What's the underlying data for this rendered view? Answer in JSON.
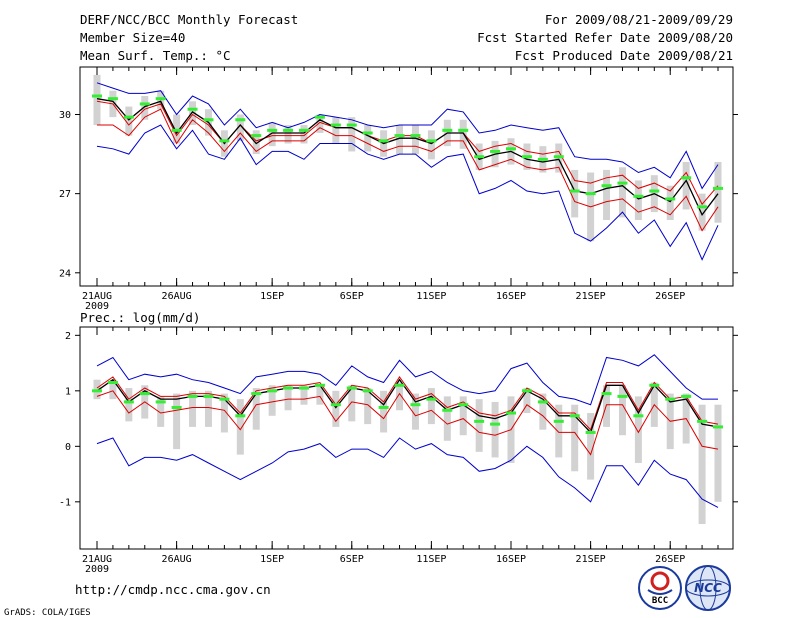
{
  "header": {
    "title": "DERF/NCC/BCC Monthly Forecast",
    "member_size": "Member Size=40",
    "variable": "Mean Surf. Temp.: °C",
    "period": "For 2009/08/21-2009/09/29",
    "start_date": "Fcst Started Refer Date 2009/08/20",
    "produced_date": "Fcst Produced Date 2009/08/21"
  },
  "footer": {
    "url": "http://cmdp.ncc.cma.gov.cn",
    "credit": "GrADS: COLA/IGES",
    "logo_left": "BCC",
    "logo_right": "NCC"
  },
  "colors": {
    "box": "#d2d2d2",
    "member": "#33ee33",
    "mean": "#000000",
    "inner": "#dd0000",
    "outer": "#0000cc"
  },
  "chart_data": [
    {
      "type": "line",
      "title": "Mean Surf. Temp.: °C",
      "x_tick_labels": [
        "21AUG",
        "26AUG",
        "1SEP",
        "6SEP",
        "11SEP",
        "16SEP",
        "21SEP",
        "26SEP"
      ],
      "x_tick_days": [
        1,
        6,
        12,
        17,
        22,
        27,
        32,
        37
      ],
      "year_label": "2009",
      "days": 40,
      "y_ticks": [
        24,
        27,
        30
      ],
      "ylim": [
        23.5,
        31.8
      ],
      "series": [
        {
          "name": "mean",
          "values": [
            30.6,
            30.5,
            29.8,
            30.3,
            30.5,
            29.3,
            30.1,
            29.7,
            28.9,
            29.6,
            28.9,
            29.3,
            29.3,
            29.3,
            29.8,
            29.5,
            29.5,
            29.2,
            28.9,
            29.1,
            29.1,
            28.9,
            29.3,
            29.3,
            28.3,
            28.5,
            28.6,
            28.3,
            28.2,
            28.3,
            27.1,
            27.0,
            27.2,
            27.3,
            26.8,
            27.0,
            26.7,
            27.5,
            26.2,
            27.0
          ]
        },
        {
          "name": "member",
          "values": [
            30.7,
            30.6,
            29.9,
            30.4,
            30.6,
            29.4,
            30.2,
            29.8,
            29.0,
            29.8,
            29.2,
            29.4,
            29.4,
            29.4,
            29.9,
            29.6,
            29.6,
            29.3,
            29.0,
            29.2,
            29.2,
            29.0,
            29.4,
            29.4,
            28.4,
            28.6,
            28.7,
            28.4,
            28.3,
            28.4,
            27.1,
            27.0,
            27.3,
            27.4,
            26.9,
            27.1,
            26.8,
            27.6,
            26.5,
            27.2
          ]
        },
        {
          "name": "upper_inner",
          "values": [
            30.5,
            30.4,
            29.6,
            30.2,
            30.4,
            29.2,
            30.0,
            29.6,
            28.9,
            29.6,
            29.0,
            29.2,
            29.2,
            29.2,
            29.7,
            29.5,
            29.5,
            29.2,
            29.0,
            29.2,
            29.2,
            28.9,
            29.3,
            29.3,
            28.6,
            28.8,
            28.9,
            28.6,
            28.5,
            28.6,
            27.5,
            27.4,
            27.6,
            27.7,
            27.2,
            27.4,
            27.1,
            27.8,
            26.6,
            27.3
          ]
        },
        {
          "name": "lower_inner",
          "values": [
            29.6,
            29.6,
            29.2,
            29.9,
            30.2,
            28.9,
            29.8,
            29.3,
            28.6,
            29.3,
            28.6,
            29.0,
            29.0,
            29.0,
            29.5,
            29.2,
            29.2,
            28.9,
            28.6,
            28.8,
            28.8,
            28.6,
            29.0,
            29.0,
            27.9,
            28.1,
            28.3,
            28.0,
            27.9,
            28.0,
            26.7,
            26.5,
            26.7,
            26.8,
            26.3,
            26.5,
            26.2,
            26.9,
            25.6,
            26.5
          ]
        },
        {
          "name": "upper_outer",
          "values": [
            31.2,
            31.0,
            30.8,
            30.8,
            30.9,
            30.0,
            30.7,
            30.4,
            29.6,
            30.2,
            29.5,
            29.7,
            29.5,
            29.7,
            30.0,
            29.9,
            29.8,
            29.6,
            29.5,
            29.6,
            29.6,
            29.6,
            30.2,
            30.1,
            29.3,
            29.4,
            29.6,
            29.5,
            29.4,
            29.5,
            28.4,
            28.3,
            28.3,
            28.2,
            27.8,
            28.0,
            27.6,
            28.6,
            27.2,
            28.1
          ]
        },
        {
          "name": "lower_outer",
          "values": [
            28.8,
            28.7,
            28.5,
            29.3,
            29.6,
            28.7,
            29.4,
            28.5,
            28.3,
            29.1,
            28.1,
            28.6,
            28.6,
            28.3,
            28.9,
            28.9,
            28.9,
            28.5,
            28.3,
            28.5,
            28.5,
            28.0,
            28.4,
            28.5,
            27.0,
            27.2,
            27.5,
            27.1,
            27.0,
            27.1,
            25.5,
            25.2,
            25.7,
            26.3,
            25.5,
            26.0,
            25.0,
            25.9,
            24.5,
            25.8
          ]
        },
        {
          "name": "box_high",
          "values": [
            31.5,
            30.9,
            30.3,
            30.7,
            30.9,
            30.0,
            30.5,
            30.2,
            29.4,
            30.0,
            29.4,
            29.7,
            29.6,
            29.6,
            30.0,
            29.9,
            29.9,
            29.6,
            29.4,
            29.6,
            29.6,
            29.4,
            29.8,
            29.8,
            28.9,
            29.0,
            29.1,
            28.9,
            28.8,
            28.9,
            27.9,
            27.8,
            27.9,
            28.0,
            27.5,
            27.7,
            27.3,
            28.2,
            27.0,
            28.2
          ]
        },
        {
          "name": "box_low",
          "values": [
            29.6,
            29.9,
            29.2,
            29.8,
            30.2,
            28.9,
            29.6,
            29.2,
            28.4,
            29.0,
            28.5,
            28.8,
            28.9,
            28.9,
            29.3,
            28.9,
            28.6,
            28.6,
            28.4,
            28.5,
            28.5,
            28.3,
            28.8,
            28.7,
            27.9,
            28.0,
            28.1,
            27.9,
            27.8,
            27.8,
            26.1,
            25.2,
            26.0,
            26.1,
            26.0,
            26.3,
            26.0,
            26.4,
            25.6,
            25.9
          ]
        }
      ]
    },
    {
      "type": "line",
      "title": "Prec.: log(mm/d)",
      "x_tick_labels": [
        "21AUG",
        "26AUG",
        "1SEP",
        "6SEP",
        "11SEP",
        "16SEP",
        "21SEP",
        "26SEP"
      ],
      "x_tick_days": [
        1,
        6,
        12,
        17,
        22,
        27,
        32,
        37
      ],
      "year_label": "2009",
      "days": 40,
      "y_ticks": [
        -1,
        0,
        1,
        2
      ],
      "ylim": [
        -1.85,
        2.15
      ],
      "series": [
        {
          "name": "mean",
          "values": [
            1.0,
            1.2,
            0.8,
            1.0,
            0.85,
            0.85,
            0.9,
            0.9,
            0.85,
            0.55,
            0.95,
            1.0,
            1.05,
            1.05,
            1.1,
            0.7,
            1.05,
            1.0,
            0.75,
            1.2,
            0.8,
            0.9,
            0.65,
            0.75,
            0.55,
            0.5,
            0.6,
            1.0,
            0.85,
            0.55,
            0.55,
            0.25,
            1.1,
            1.1,
            0.6,
            1.1,
            0.8,
            0.85,
            0.4,
            0.35
          ]
        },
        {
          "name": "member",
          "values": [
            1.0,
            1.15,
            0.8,
            0.95,
            0.8,
            0.7,
            0.9,
            0.9,
            0.85,
            0.55,
            0.95,
            1.0,
            1.05,
            1.05,
            1.1,
            0.75,
            1.05,
            1.0,
            0.7,
            1.1,
            0.75,
            0.85,
            0.65,
            0.75,
            0.45,
            0.4,
            0.6,
            1.0,
            0.8,
            0.45,
            0.55,
            0.25,
            0.95,
            0.9,
            0.55,
            1.1,
            0.85,
            0.9,
            0.45,
            0.35
          ]
        },
        {
          "name": "upper_inner",
          "values": [
            1.05,
            1.25,
            0.85,
            1.05,
            0.9,
            0.9,
            0.95,
            0.95,
            0.9,
            0.6,
            1.0,
            1.05,
            1.1,
            1.1,
            1.15,
            0.75,
            1.1,
            1.05,
            0.8,
            1.25,
            0.85,
            0.95,
            0.7,
            0.8,
            0.6,
            0.55,
            0.65,
            1.05,
            0.9,
            0.6,
            0.6,
            0.3,
            1.15,
            1.15,
            0.65,
            1.15,
            0.85,
            0.9,
            0.45,
            0.4
          ]
        },
        {
          "name": "lower_inner",
          "values": [
            0.9,
            1.0,
            0.6,
            0.8,
            0.6,
            0.65,
            0.7,
            0.7,
            0.65,
            0.3,
            0.75,
            0.8,
            0.85,
            0.85,
            0.9,
            0.45,
            0.8,
            0.75,
            0.5,
            0.95,
            0.55,
            0.65,
            0.4,
            0.5,
            0.25,
            0.2,
            0.3,
            0.75,
            0.55,
            0.25,
            0.25,
            -0.15,
            0.75,
            0.75,
            0.25,
            0.75,
            0.45,
            0.5,
            0.0,
            -0.05
          ]
        },
        {
          "name": "upper_outer",
          "values": [
            1.45,
            1.6,
            1.2,
            1.3,
            1.25,
            1.3,
            1.2,
            1.15,
            1.05,
            0.95,
            1.25,
            1.3,
            1.35,
            1.35,
            1.3,
            1.1,
            1.45,
            1.25,
            1.15,
            1.55,
            1.25,
            1.35,
            1.15,
            1.0,
            0.95,
            1.0,
            1.4,
            1.5,
            1.15,
            0.9,
            0.85,
            0.75,
            1.6,
            1.55,
            1.45,
            1.65,
            1.35,
            1.05,
            0.85,
            0.85
          ]
        },
        {
          "name": "lower_outer",
          "values": [
            0.05,
            0.15,
            -0.35,
            -0.2,
            -0.2,
            -0.25,
            -0.15,
            -0.3,
            -0.45,
            -0.6,
            -0.45,
            -0.3,
            -0.1,
            -0.05,
            0.05,
            -0.2,
            -0.05,
            -0.05,
            -0.2,
            0.15,
            -0.05,
            0.05,
            -0.15,
            -0.2,
            -0.45,
            -0.4,
            -0.25,
            0.0,
            -0.2,
            -0.55,
            -0.75,
            -1.0,
            -0.35,
            -0.35,
            -0.7,
            -0.25,
            -0.5,
            -0.6,
            -0.95,
            -1.1
          ]
        },
        {
          "name": "box_high",
          "values": [
            1.2,
            1.2,
            1.05,
            1.1,
            0.9,
            0.95,
            1.0,
            1.0,
            0.95,
            0.85,
            1.05,
            1.1,
            1.1,
            1.1,
            1.1,
            1.0,
            1.1,
            1.05,
            1.0,
            1.15,
            0.95,
            1.05,
            0.9,
            0.9,
            0.85,
            0.8,
            0.9,
            1.05,
            0.95,
            0.75,
            0.75,
            0.6,
            1.1,
            1.1,
            0.9,
            1.15,
            0.95,
            0.95,
            0.75,
            0.75
          ]
        },
        {
          "name": "box_low",
          "values": [
            0.85,
            0.85,
            0.45,
            0.5,
            0.35,
            -0.05,
            0.35,
            0.35,
            0.25,
            -0.15,
            0.3,
            0.55,
            0.65,
            0.75,
            0.75,
            0.35,
            0.45,
            0.4,
            0.25,
            0.65,
            0.3,
            0.4,
            0.1,
            0.2,
            -0.1,
            -0.2,
            -0.3,
            0.6,
            0.3,
            -0.2,
            -0.45,
            -0.6,
            0.35,
            0.2,
            -0.3,
            0.35,
            -0.05,
            0.05,
            -1.4,
            -1.0
          ]
        }
      ]
    }
  ]
}
